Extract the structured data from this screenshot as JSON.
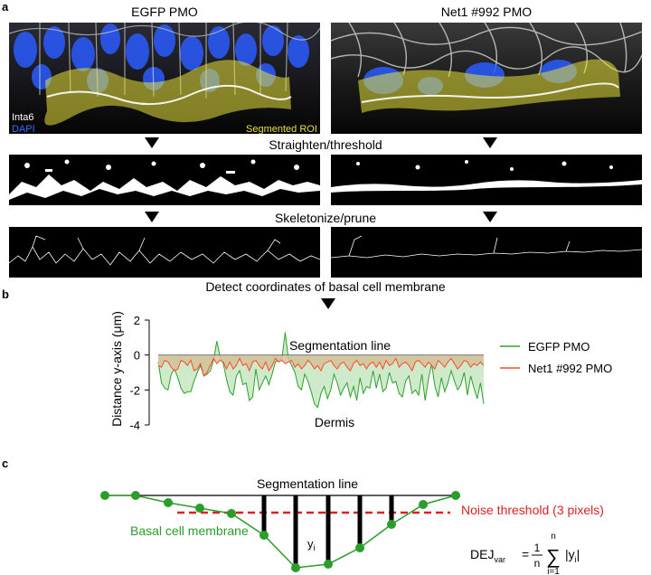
{
  "panel_a": {
    "letter": "a",
    "left_title": "EGFP PMO",
    "right_title": "Net1 #992 PMO",
    "legend_inta6": "Inta6",
    "legend_dapi": "DAPI",
    "roi_label": "Segmented ROI",
    "step1": "Straighten/threshold",
    "step2": "Skeletonize/prune",
    "step3": "Detect coordinates of basal cell membrane",
    "colors": {
      "dapi": "#2a5cff",
      "roi": "#e8e23a",
      "membrane": "#d8d8d8"
    }
  },
  "panel_b": {
    "letter": "b",
    "annotation_top": "Segmentation line",
    "annotation_bottom": "Dermis"
  },
  "chart_data": {
    "type": "area",
    "ylabel": "Distance y-axis (μm)",
    "ylim": [
      -4,
      2
    ],
    "yticks": [
      2,
      0,
      -2,
      -4
    ],
    "grid": false,
    "legend_placement": "right",
    "series": [
      {
        "name": "EGFP PMO",
        "color": "#2ca02c",
        "fill": "#c9e8c4",
        "values": [
          -0.4,
          -1.6,
          -1.9,
          -2.0,
          -1.1,
          -0.8,
          -1.3,
          -1.9,
          -2.2,
          -2.1,
          -2.1,
          -1.5,
          -1.0,
          -0.6,
          -1.2,
          -1.1,
          -0.9,
          -0.3,
          0.8,
          -0.1,
          -0.5,
          -1.4,
          -2.1,
          -2.3,
          -1.2,
          -0.9,
          -1.7,
          -1.6,
          -2.6,
          -2.4,
          -0.8,
          -2.0,
          -1.6,
          -1.2,
          -1.7,
          -1.1,
          -0.4,
          -0.3,
          -0.2,
          1.3,
          -0.2,
          -0.6,
          -1.0,
          -1.8,
          -2.0,
          -1.1,
          -1.5,
          -2.1,
          -2.8,
          -3.0,
          -2.2,
          -1.8,
          -2.5,
          -2.0,
          -1.1,
          -1.6,
          -2.3,
          -1.9,
          -1.6,
          -2.4,
          -1.8,
          -2.6,
          -1.3,
          -2.2,
          -1.8,
          -1.9,
          -0.9,
          -1.9,
          -1.1,
          -2.1,
          -1.9,
          -1.0,
          -1.6,
          -1.5,
          -2.2,
          -2.4,
          -1.5,
          -1.2,
          -2.2,
          -2.0,
          -2.3,
          -1.1,
          -2.6,
          -1.4,
          -0.5,
          -1.8,
          -2.4,
          -1.3,
          -2.1,
          -1.6,
          -0.9,
          -1.5,
          -2.0,
          -1.7,
          -1.0,
          -2.3,
          -1.2,
          -1.9,
          -2.5,
          -1.6,
          -2.8
        ]
      },
      {
        "name": "Net1 #992 PMO",
        "color": "#ff4a2a",
        "fill": "#d4c19a",
        "values": [
          -0.6,
          -0.7,
          -0.3,
          -0.4,
          -0.7,
          -0.9,
          -0.8,
          -0.3,
          -0.4,
          -0.6,
          -0.3,
          -0.9,
          -0.8,
          -0.5,
          -1.2,
          -1.0,
          -0.6,
          -0.2,
          -0.5,
          -0.3,
          -0.4,
          -0.8,
          -0.4,
          -0.8,
          -0.6,
          -0.2,
          -0.6,
          -0.5,
          -0.9,
          -0.4,
          -0.3,
          -0.6,
          -0.8,
          -0.4,
          -0.9,
          -0.6,
          -0.2,
          -0.4,
          -0.3,
          -0.5,
          -0.4,
          -0.3,
          -0.7,
          -0.5,
          -0.8,
          -0.6,
          -0.3,
          -0.5,
          -0.8,
          -0.6,
          -0.9,
          -0.5,
          -0.4,
          -0.3,
          -0.6,
          -0.8,
          -0.5,
          -0.4,
          -0.7,
          -0.9,
          -0.5,
          -0.3,
          -0.6,
          -0.5,
          -0.8,
          -0.5,
          -0.4,
          -0.7,
          -0.4,
          -0.8,
          -0.3,
          -0.6,
          -0.5,
          -0.2,
          -0.7,
          -0.5,
          -0.4,
          -0.6,
          -0.9,
          -0.4,
          -0.3,
          -0.5,
          -0.7,
          -0.4,
          -0.6,
          -0.8,
          -0.3,
          -0.5,
          -0.7,
          -0.4,
          -0.2,
          -0.5,
          -0.8,
          -0.6,
          -0.3,
          -0.4,
          -0.7,
          -0.5,
          -0.6,
          -0.4,
          -0.6
        ]
      }
    ]
  },
  "panel_c": {
    "letter": "c",
    "segmentation_label": "Segmentation line",
    "noise_label": "Noise threshold (3 pixels)",
    "membrane_label": "Basal cell membrane",
    "yi_label": "y",
    "yi_sub": "i",
    "formula": {
      "lhs": "DEJ",
      "lhs_sub": "var",
      "equals": "=",
      "num": "1",
      "den": "n",
      "sigma": "∑",
      "sum_top": "n",
      "sum_bottom": "i=1",
      "term": "|y",
      "term_sub": "i",
      "term_end": "|"
    },
    "colors": {
      "membrane": "#2a9d2a",
      "noise": "#e02020"
    }
  }
}
